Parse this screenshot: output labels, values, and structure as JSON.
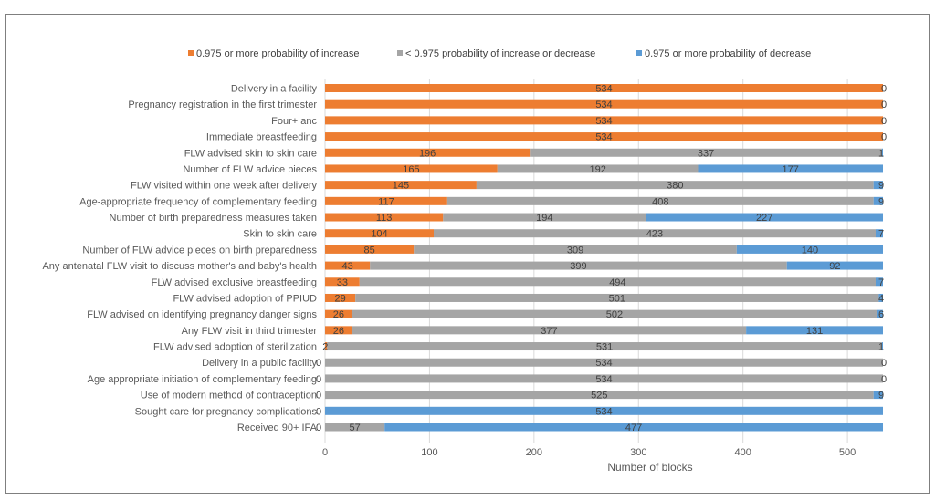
{
  "chart_data": {
    "type": "bar",
    "orientation": "horizontal",
    "stacked": true,
    "title": "",
    "xlabel": "Number of blocks",
    "ylabel": "",
    "xlim": [
      0,
      534
    ],
    "xticks": [
      0,
      100,
      200,
      300,
      400,
      500
    ],
    "grid": true,
    "legend_position": "top",
    "categories": [
      "Delivery in a facility",
      "Pregnancy registration in the first trimester",
      "Four+ anc",
      "Immediate breastfeeding",
      "FLW advised skin to skin care",
      "Number of FLW advice pieces",
      "FLW visited within one week after delivery",
      "Age-appropriate frequency of complementary feeding",
      "Number of birth preparedness measures taken",
      "Skin to skin care",
      "Number of FLW advice pieces on birth preparedness",
      "Any antenatal FLW visit to discuss mother's and baby's health",
      "FLW advised exclusive breastfeeding",
      "FLW advised adoption of PPIUD",
      "FLW advised on identifying pregnancy danger signs",
      "Any FLW visit in third trimester",
      "FLW advised adoption of sterilization",
      "Delivery in a public facility",
      "Age appropriate initiation of complementary feeding",
      "Use of modern method of contraception",
      "Sought care for pregnancy complications",
      "Received 90+ IFA"
    ],
    "series": [
      {
        "name": "0.975 or more probability of increase",
        "color": "#ed7d31",
        "values": [
          534,
          534,
          534,
          534,
          196,
          165,
          145,
          117,
          113,
          104,
          85,
          43,
          33,
          29,
          26,
          26,
          2,
          0,
          0,
          0,
          0,
          0
        ]
      },
      {
        "name": "< 0.975 probability of increase or decrease",
        "color": "#a5a5a5",
        "values": [
          0,
          0,
          0,
          0,
          337,
          192,
          380,
          408,
          194,
          423,
          309,
          399,
          494,
          501,
          502,
          377,
          531,
          534,
          534,
          525,
          0,
          57
        ]
      },
      {
        "name": "0.975 or more probability of decrease",
        "color": "#5b9bd5",
        "values": [
          0,
          0,
          0,
          0,
          1,
          177,
          9,
          9,
          227,
          7,
          140,
          92,
          7,
          4,
          6,
          131,
          1,
          0,
          0,
          9,
          534,
          477
        ]
      }
    ]
  }
}
